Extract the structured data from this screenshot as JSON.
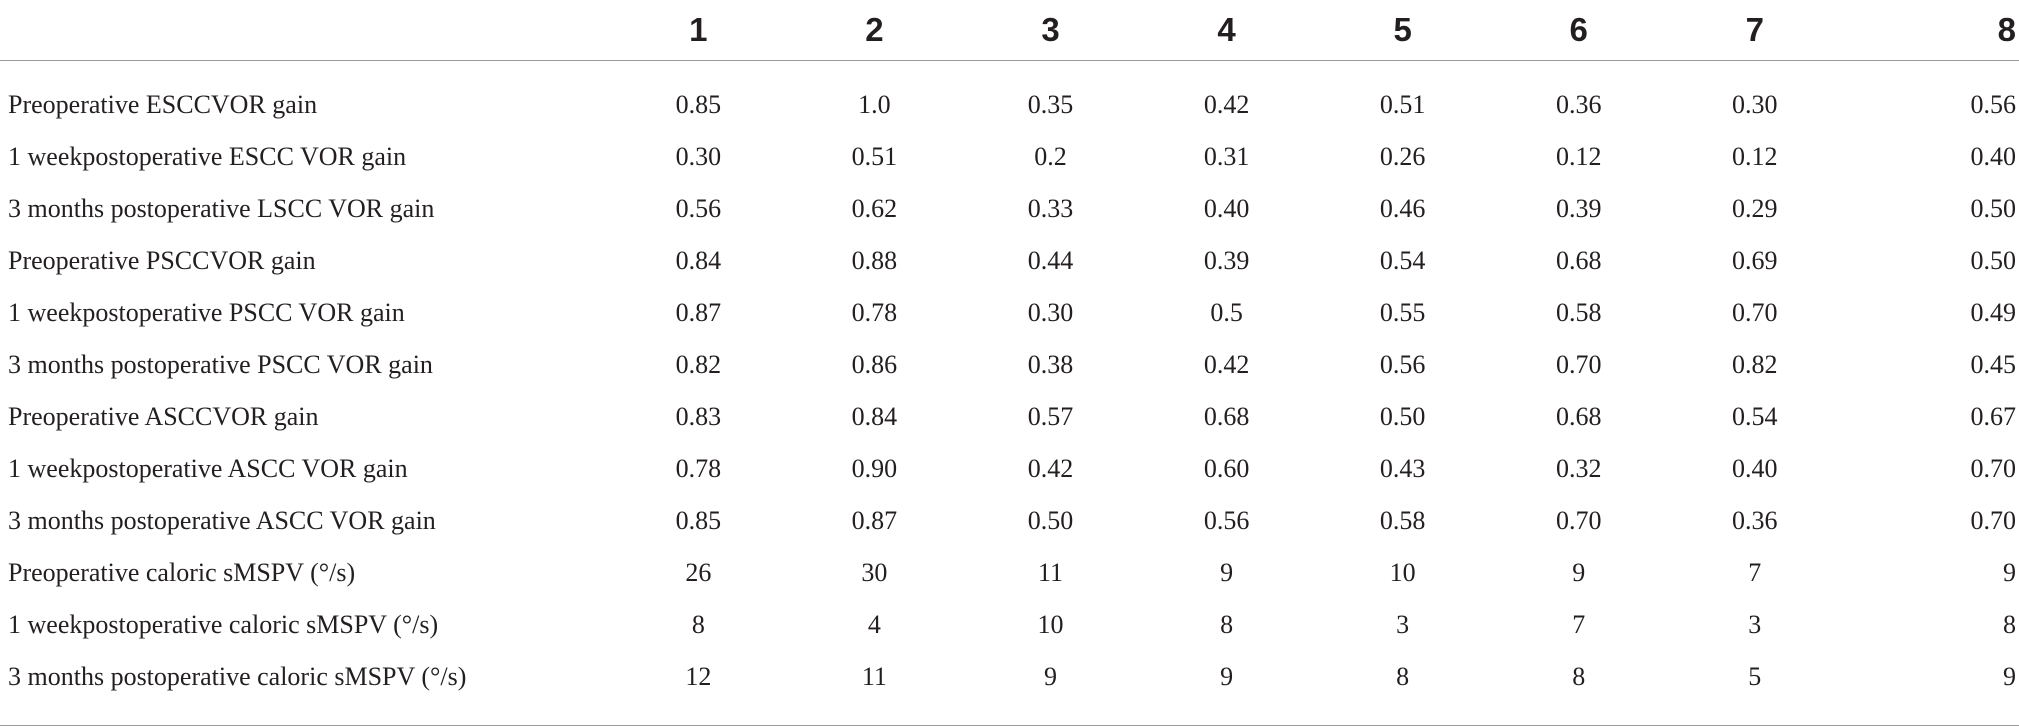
{
  "table": {
    "columns": [
      "",
      "1",
      "2",
      "3",
      "4",
      "5",
      "6",
      "7",
      "8"
    ],
    "rows": [
      {
        "label": "Preoperative ESCCVOR gain",
        "values": [
          "0.85",
          "1.0",
          "0.35",
          "0.42",
          "0.51",
          "0.36",
          "0.30",
          "0.56"
        ]
      },
      {
        "label": "1 weekpostoperative ESCC VOR gain",
        "values": [
          "0.30",
          "0.51",
          "0.2",
          "0.31",
          "0.26",
          "0.12",
          "0.12",
          "0.40"
        ]
      },
      {
        "label": "3 months postoperative LSCC VOR gain",
        "values": [
          "0.56",
          "0.62",
          "0.33",
          "0.40",
          "0.46",
          "0.39",
          "0.29",
          "0.50"
        ]
      },
      {
        "label": "Preoperative PSCCVOR gain",
        "values": [
          "0.84",
          "0.88",
          "0.44",
          "0.39",
          "0.54",
          "0.68",
          "0.69",
          "0.50"
        ]
      },
      {
        "label": "1 weekpostoperative PSCC VOR gain",
        "values": [
          "0.87",
          "0.78",
          "0.30",
          "0.5",
          "0.55",
          "0.58",
          "0.70",
          "0.49"
        ]
      },
      {
        "label": "3 months postoperative PSCC VOR gain",
        "values": [
          "0.82",
          "0.86",
          "0.38",
          "0.42",
          "0.56",
          "0.70",
          "0.82",
          "0.45"
        ]
      },
      {
        "label": "Preoperative ASCCVOR gain",
        "values": [
          "0.83",
          "0.84",
          "0.57",
          "0.68",
          "0.50",
          "0.68",
          "0.54",
          "0.67"
        ]
      },
      {
        "label": "1 weekpostoperative ASCC VOR gain",
        "values": [
          "0.78",
          "0.90",
          "0.42",
          "0.60",
          "0.43",
          "0.32",
          "0.40",
          "0.70"
        ]
      },
      {
        "label": "3 months postoperative ASCC VOR gain",
        "values": [
          "0.85",
          "0.87",
          "0.50",
          "0.56",
          "0.58",
          "0.70",
          "0.36",
          "0.70"
        ]
      },
      {
        "label": "Preoperative caloric sMSPV (°/s)",
        "values": [
          "26",
          "30",
          "11",
          "9",
          "10",
          "9",
          "7",
          "9"
        ]
      },
      {
        "label": "1 weekpostoperative caloric sMSPV (°/s)",
        "values": [
          "8",
          "4",
          "10",
          "8",
          "3",
          "7",
          "3",
          "8"
        ]
      },
      {
        "label": "3 months postoperative caloric sMSPV (°/s)",
        "values": [
          "12",
          "11",
          "9",
          "9",
          "8",
          "8",
          "5",
          "9"
        ]
      }
    ]
  }
}
